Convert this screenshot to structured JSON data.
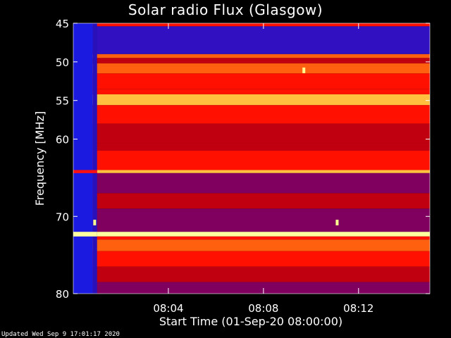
{
  "chart_data": {
    "type": "heatmap",
    "title": "Solar radio Flux (Glasgow)",
    "xlabel": "Start Time (01-Sep-20 08:00:00)",
    "ylabel": "Frequency [MHz]",
    "x_unit": "minutes after 08:00:00",
    "xlim": [
      0,
      15
    ],
    "ylim": [
      45,
      80
    ],
    "y_inverted": true,
    "x_ticks": [
      {
        "value": 4,
        "label": "08:04"
      },
      {
        "value": 8,
        "label": "08:08"
      },
      {
        "value": 12,
        "label": "08:12"
      }
    ],
    "y_ticks": [
      {
        "value": 45,
        "label": "45"
      },
      {
        "value": 50,
        "label": "50"
      },
      {
        "value": 55,
        "label": "55"
      },
      {
        "value": 60,
        "label": "60"
      },
      {
        "value": 70,
        "label": "70"
      },
      {
        "value": 80,
        "label": "80"
      }
    ],
    "colormap": [
      "#1010d0",
      "#3010c0",
      "#800060",
      "#c00010",
      "#ff1000",
      "#ff6010",
      "#ffc040",
      "#ffffa0"
    ],
    "early_low_flux_end": 1.0,
    "bands": [
      {
        "from": 45.0,
        "to": 45.4,
        "level": 0.55
      },
      {
        "from": 45.4,
        "to": 49.0,
        "level": 0.12
      },
      {
        "from": 49.0,
        "to": 49.5,
        "level": 0.65
      },
      {
        "from": 49.5,
        "to": 50.2,
        "level": 0.4
      },
      {
        "from": 50.2,
        "to": 51.5,
        "level": 0.78
      },
      {
        "from": 51.5,
        "to": 53.5,
        "level": 0.52
      },
      {
        "from": 53.5,
        "to": 54.2,
        "level": 0.62
      },
      {
        "from": 54.2,
        "to": 55.6,
        "level": 0.8
      },
      {
        "from": 55.6,
        "to": 58.0,
        "level": 0.6
      },
      {
        "from": 58.0,
        "to": 60.5,
        "level": 0.5
      },
      {
        "from": 60.5,
        "to": 61.5,
        "level": 0.4
      },
      {
        "from": 61.5,
        "to": 64.0,
        "level": 0.55
      },
      {
        "from": 64.0,
        "to": 64.4,
        "level": 0.85
      },
      {
        "from": 64.4,
        "to": 67.0,
        "level": 0.3
      },
      {
        "from": 67.0,
        "to": 69.0,
        "level": 0.4
      },
      {
        "from": 69.0,
        "to": 72.0,
        "level": 0.28
      },
      {
        "from": 72.0,
        "to": 72.6,
        "level": 1.0
      },
      {
        "from": 72.6,
        "to": 73.0,
        "level": 0.55
      },
      {
        "from": 73.0,
        "to": 74.5,
        "level": 0.72
      },
      {
        "from": 74.5,
        "to": 76.5,
        "level": 0.55
      },
      {
        "from": 76.5,
        "to": 78.5,
        "level": 0.45
      },
      {
        "from": 78.5,
        "to": 80.0,
        "level": 0.35
      }
    ],
    "bursts": [
      {
        "time": 0.9,
        "freq": 70.8
      },
      {
        "time": 9.7,
        "freq": 51.1
      },
      {
        "time": 11.1,
        "freq": 70.8
      }
    ],
    "footer": "Updated Wed Sep  9 17:01:17 2020"
  }
}
